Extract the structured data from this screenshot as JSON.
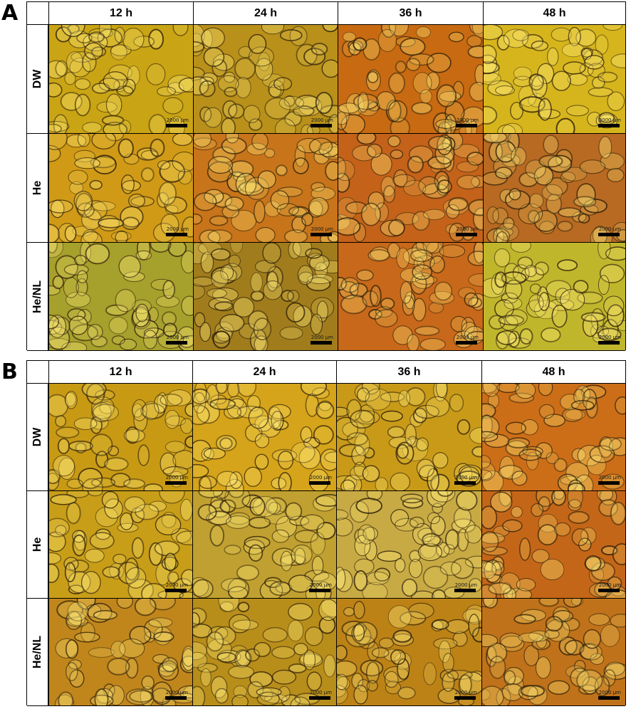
{
  "panels": [
    {
      "letter": "A",
      "columns": [
        "12 h",
        "24 h",
        "36 h",
        "48 h"
      ],
      "rows": [
        "DW",
        "He",
        "He/NL"
      ],
      "tones": [
        [
          "#c9a414",
          "#b8901a",
          "#c86a12",
          "#d6b51c"
        ],
        [
          "#d09a16",
          "#c8741a",
          "#c4621a",
          "#b86a22"
        ],
        [
          "#a6a02c",
          "#a07c1c",
          "#c8681a",
          "#c0b62c"
        ]
      ]
    },
    {
      "letter": "B",
      "columns": [
        "12 h",
        "24 h",
        "36 h",
        "48 h"
      ],
      "rows": [
        "DW",
        "He",
        "He/NL"
      ],
      "tones": [
        [
          "#c89a14",
          "#d6a41a",
          "#c89a18",
          "#cc6e18"
        ],
        [
          "#c89e18",
          "#c0a030",
          "#c8aa44",
          "#c46618"
        ],
        [
          "#c0861c",
          "#b88e1a",
          "#bc8216",
          "#c0721a"
        ]
      ]
    }
  ],
  "scale_label": "2000 µm"
}
